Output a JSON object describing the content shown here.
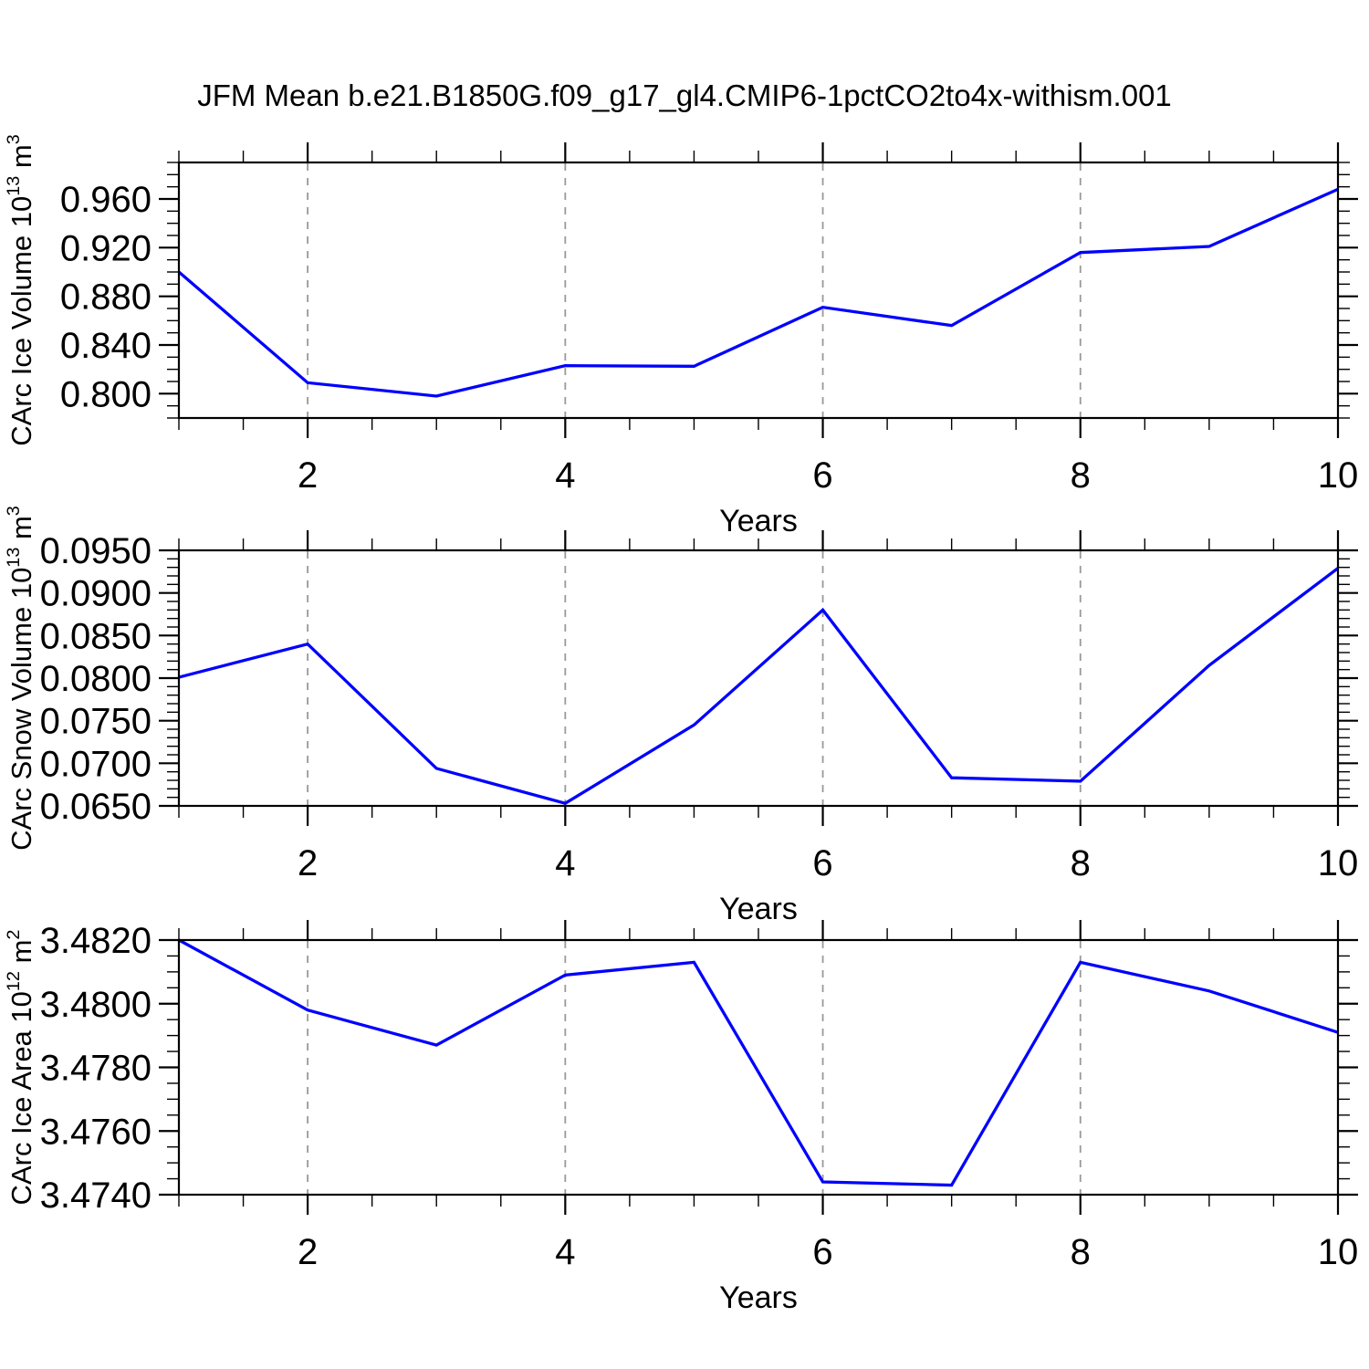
{
  "title": "JFM Mean b.e21.B1850G.f09_g17_gl4.CMIP6-1pctCO2to4x-withism.001",
  "colors": {
    "line": "#0000ff",
    "grid": "#999999",
    "axis": "#000000",
    "text": "#000000",
    "background": "#ffffff"
  },
  "chart_data": [
    {
      "type": "line",
      "panel": "ice-volume",
      "ylabel": "CArc Ice Volume 10¹³ m³",
      "ylabel_parts": [
        {
          "text": "CArc Ice Volume 10"
        },
        {
          "text": "13",
          "sup": true
        },
        {
          "text": " m"
        },
        {
          "text": "3",
          "sup": true
        }
      ],
      "xlabel": "Years",
      "x": [
        1,
        2,
        3,
        4,
        5,
        6,
        7,
        8,
        9,
        10
      ],
      "values": [
        0.9,
        0.809,
        0.798,
        0.823,
        0.8225,
        0.871,
        0.856,
        0.916,
        0.921,
        0.968
      ],
      "xlim": [
        1,
        10
      ],
      "ylim": [
        0.78,
        0.99
      ],
      "x_ticks": {
        "values": [
          2,
          4,
          6,
          8,
          10
        ],
        "labels": [
          "2",
          "4",
          "6",
          "8",
          "10"
        ]
      },
      "x_minor_step": 0.5,
      "y_ticks": {
        "values": [
          0.8,
          0.84,
          0.88,
          0.92,
          0.96
        ],
        "labels": [
          "0.800",
          "0.840",
          "0.880",
          "0.920",
          "0.960"
        ]
      },
      "y_minor_step": 0.01,
      "gridline_x": [
        2,
        4,
        6,
        8
      ],
      "grid": "vertical-dashed",
      "legend": "none"
    },
    {
      "type": "line",
      "panel": "snow-volume",
      "ylabel": "CArc Snow Volume 10¹³ m³",
      "ylabel_parts": [
        {
          "text": "CArc Snow Volume 10"
        },
        {
          "text": "13",
          "sup": true
        },
        {
          "text": " m"
        },
        {
          "text": "3",
          "sup": true
        }
      ],
      "xlabel": "Years",
      "x": [
        1,
        2,
        3,
        4,
        5,
        6,
        7,
        8,
        9,
        10
      ],
      "values": [
        0.0801,
        0.084,
        0.0694,
        0.0653,
        0.0745,
        0.088,
        0.0683,
        0.0679,
        0.0815,
        0.0929
      ],
      "xlim": [
        1,
        10
      ],
      "ylim": [
        0.065,
        0.095
      ],
      "x_ticks": {
        "values": [
          2,
          4,
          6,
          8,
          10
        ],
        "labels": [
          "2",
          "4",
          "6",
          "8",
          "10"
        ]
      },
      "x_minor_step": 0.5,
      "y_ticks": {
        "values": [
          0.065,
          0.07,
          0.075,
          0.08,
          0.085,
          0.09,
          0.095
        ],
        "labels": [
          "0.0650",
          "0.0700",
          "0.0750",
          "0.0800",
          "0.0850",
          "0.0900",
          "0.0950"
        ]
      },
      "y_minor_step": 0.001,
      "gridline_x": [
        2,
        4,
        6,
        8
      ],
      "grid": "vertical-dashed",
      "legend": "none"
    },
    {
      "type": "line",
      "panel": "ice-area",
      "ylabel": "CArc Ice Area 10¹² m²",
      "ylabel_parts": [
        {
          "text": "CArc Ice Area 10"
        },
        {
          "text": "12",
          "sup": true
        },
        {
          "text": " m"
        },
        {
          "text": "2",
          "sup": true
        }
      ],
      "xlabel": "Years",
      "x": [
        1,
        2,
        3,
        4,
        5,
        6,
        7,
        8,
        9,
        10
      ],
      "values": [
        3.482,
        3.4798,
        3.4787,
        3.4809,
        3.4813,
        3.4744,
        3.4743,
        3.4813,
        3.4804,
        3.4791
      ],
      "xlim": [
        1,
        10
      ],
      "ylim": [
        3.474,
        3.482
      ],
      "x_ticks": {
        "values": [
          2,
          4,
          6,
          8,
          10
        ],
        "labels": [
          "2",
          "4",
          "6",
          "8",
          "10"
        ]
      },
      "x_minor_step": 0.5,
      "y_ticks": {
        "values": [
          3.474,
          3.476,
          3.478,
          3.48,
          3.482
        ],
        "labels": [
          "3.4740",
          "3.4760",
          "3.4780",
          "3.4800",
          "3.4820"
        ]
      },
      "y_minor_step": 0.0005,
      "gridline_x": [
        2,
        4,
        6,
        8
      ],
      "grid": "vertical-dashed",
      "legend": "none"
    }
  ]
}
